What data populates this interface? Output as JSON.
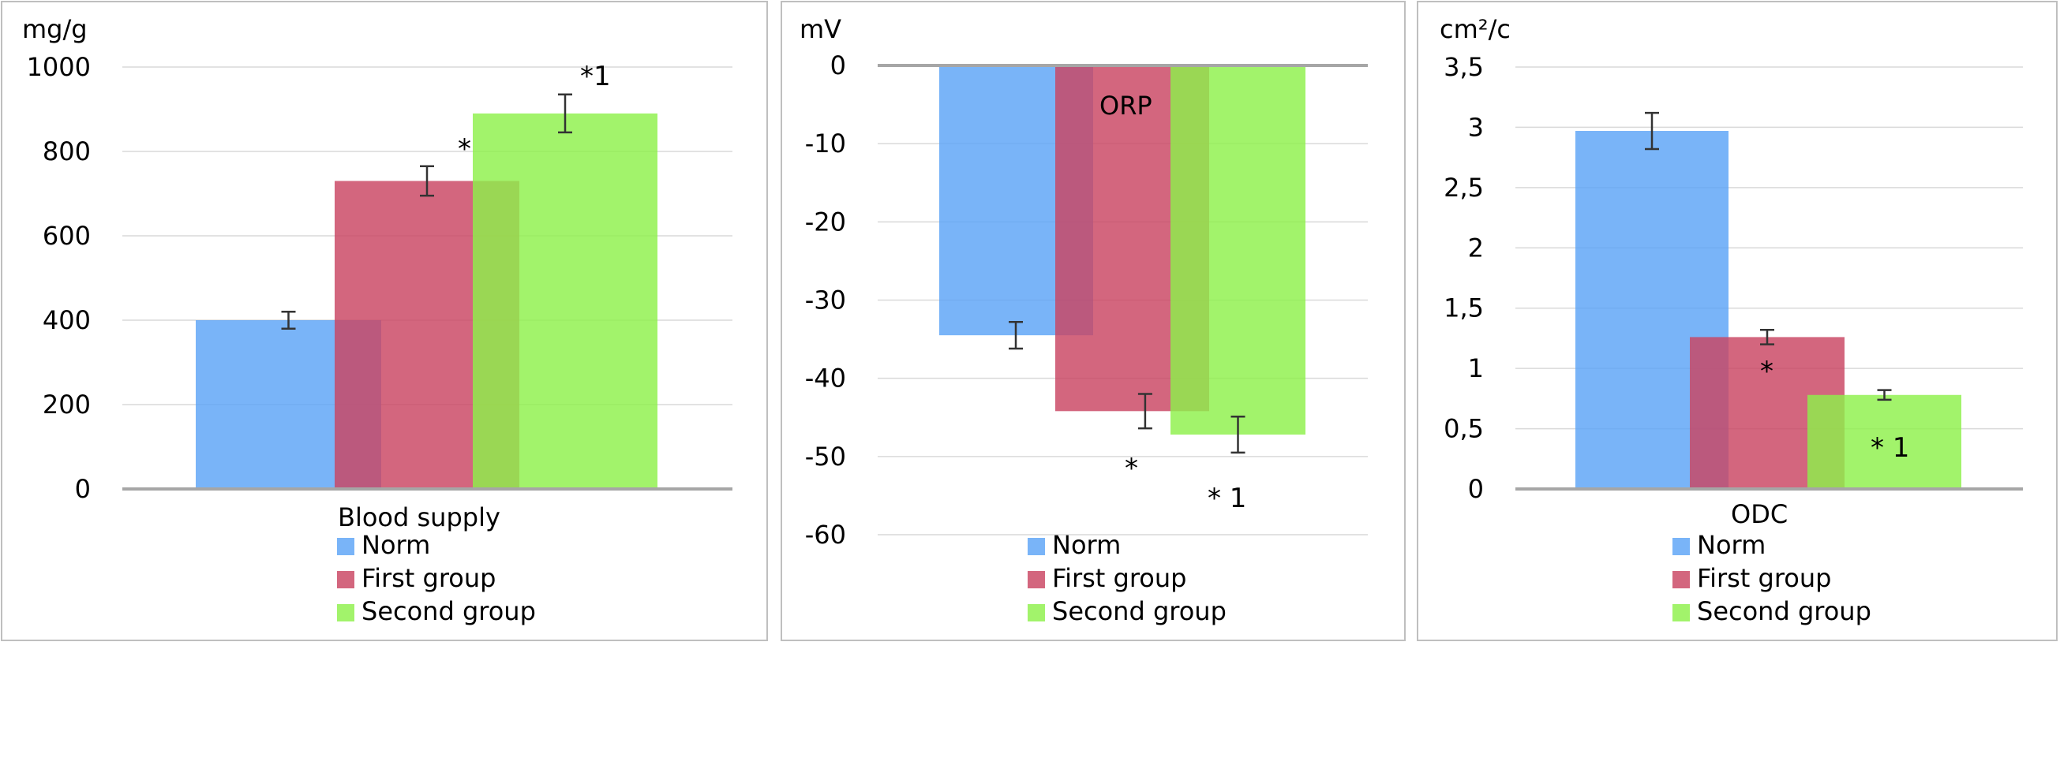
{
  "colors": {
    "norm": "#5ba3f7",
    "first": "#c94462",
    "second": "#8ef04a",
    "grid": "#d9d9d9",
    "axis": "#a6a6a6",
    "panel_border": "#bfbfbf"
  },
  "chart_data": [
    {
      "type": "bar",
      "unit": "mg/g",
      "xlabel": "Blood supply",
      "category_label": "Blood supply",
      "categories": [
        "Blood supply"
      ],
      "ylim": [
        0,
        1000
      ],
      "yticks": [
        0,
        200,
        400,
        600,
        800,
        1000
      ],
      "ytick_labels": [
        "0",
        "200",
        "400",
        "600",
        "800",
        "1000"
      ],
      "grid": true,
      "series": [
        {
          "name": "Norm",
          "color_key": "norm",
          "values": [
            400
          ],
          "error": [
            20
          ],
          "annotation": ""
        },
        {
          "name": "First group",
          "color_key": "first",
          "values": [
            730
          ],
          "error": [
            35
          ],
          "annotation": "*"
        },
        {
          "name": "Second group",
          "color_key": "second",
          "values": [
            890
          ],
          "error": [
            45
          ],
          "annotation": "*1"
        }
      ],
      "legend": [
        "Norm",
        "First group",
        "Second group"
      ],
      "legend_position": "bottom"
    },
    {
      "type": "bar",
      "unit": "mV",
      "xlabel": "ORP",
      "category_label": "ORP",
      "categories": [
        "ORP"
      ],
      "ylim": [
        -60,
        0
      ],
      "yticks": [
        0,
        -10,
        -20,
        -30,
        -40,
        -50,
        -60
      ],
      "ytick_labels": [
        "0",
        "-10",
        "-20",
        "-30",
        "-40",
        "-50",
        "-60"
      ],
      "grid": true,
      "series": [
        {
          "name": "Norm",
          "color_key": "norm",
          "values": [
            -34.5
          ],
          "error": [
            1.7
          ],
          "annotation": ""
        },
        {
          "name": "First group",
          "color_key": "first",
          "values": [
            -44.2
          ],
          "error": [
            2.2
          ],
          "annotation": "*"
        },
        {
          "name": "Second group",
          "color_key": "second",
          "values": [
            -47.2
          ],
          "error": [
            2.3
          ],
          "annotation": "* 1"
        }
      ],
      "legend": [
        "Norm",
        "First group",
        "Second group"
      ],
      "legend_position": "bottom"
    },
    {
      "type": "bar",
      "unit": "cm²/c",
      "xlabel": "ODC",
      "category_label": "ODC",
      "categories": [
        "ODC"
      ],
      "ylim": [
        0,
        3.5
      ],
      "yticks": [
        0,
        0.5,
        1,
        1.5,
        2,
        2.5,
        3,
        3.5
      ],
      "ytick_labels": [
        "0",
        "0,5",
        "1",
        "1,5",
        "2",
        "2,5",
        "3",
        "3,5"
      ],
      "grid": true,
      "series": [
        {
          "name": "Norm",
          "color_key": "norm",
          "values": [
            2.97
          ],
          "error": [
            0.15
          ],
          "annotation": ""
        },
        {
          "name": "First group",
          "color_key": "first",
          "values": [
            1.26
          ],
          "error": [
            0.06
          ],
          "annotation": "*"
        },
        {
          "name": "Second group",
          "color_key": "second",
          "values": [
            0.78
          ],
          "error": [
            0.04
          ],
          "annotation": "* 1"
        }
      ],
      "legend": [
        "Norm",
        "First group",
        "Second group"
      ],
      "legend_position": "bottom"
    }
  ]
}
